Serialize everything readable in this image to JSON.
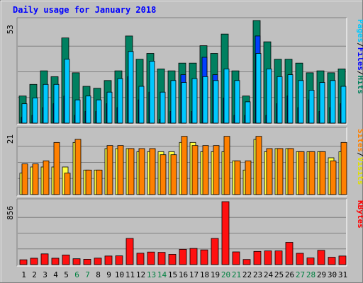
{
  "chart_data": {
    "type": "bar",
    "title": "Daily usage for January 2018",
    "title_color": "#0000ff",
    "days": [
      "1",
      "2",
      "3",
      "4",
      "5",
      "6",
      "7",
      "8",
      "9",
      "10",
      "11",
      "12",
      "13",
      "14",
      "15",
      "16",
      "17",
      "18",
      "19",
      "20",
      "21",
      "22",
      "23",
      "24",
      "25",
      "26",
      "27",
      "28",
      "29",
      "30",
      "31"
    ],
    "weekend_days": [
      "6",
      "7",
      "13",
      "14",
      "20",
      "21",
      "27",
      "28"
    ],
    "weekend_color": "#008040",
    "panels": [
      {
        "name": "hits-panel",
        "scale_label": "53",
        "max": 53,
        "legend": [
          {
            "text": "Hits",
            "color": "#00805c"
          },
          {
            "text": "Files",
            "color": "#0000ff"
          },
          {
            "text": "Pages",
            "color": "#00c8ff"
          }
        ],
        "series": [
          {
            "name": "Hits",
            "color": "#008060",
            "values": [
              14,
              20,
              27,
              24,
              44,
              26,
              19,
              18,
              22,
              27,
              45,
              33,
              36,
              28,
              27,
              31,
              31,
              40,
              36,
              46,
              27,
              14,
              53,
              42,
              33,
              33,
              31,
              26,
              27,
              26,
              28
            ]
          },
          {
            "name": "Files",
            "color": "#0040ff",
            "values": [
              3,
              4,
              8,
              10,
              14,
              4,
              6,
              6,
              10,
              8,
              24,
              12,
              16,
              2,
              6,
              25,
              6,
              34,
              25,
              13,
              4,
              4,
              45,
              4,
              10,
              14,
              8,
              12,
              6,
              8,
              10
            ]
          },
          {
            "name": "Pages",
            "color": "#00c8ff",
            "values": [
              10,
              13,
              20,
              20,
              33,
              12,
              14,
              12,
              16,
              23,
              37,
              19,
              32,
              16,
              22,
              21,
              23,
              24,
              22,
              28,
              22,
              11,
              36,
              28,
              24,
              25,
              22,
              17,
              21,
              22,
              19
            ]
          }
        ]
      },
      {
        "name": "visits-panel",
        "scale_label": "21",
        "max": 21,
        "legend": [
          {
            "text": "Visits",
            "color": "#e0e000"
          },
          {
            "text": "Sites",
            "color": "#ff8000"
          }
        ],
        "series": [
          {
            "name": "Visits",
            "color": "#ffff40",
            "values": [
              7,
              9,
              9,
              9,
              9,
              17,
              8,
              8,
              15,
              15,
              15,
              14,
              14,
              14,
              14,
              17,
              17,
              14,
              14,
              14,
              11,
              8,
              18,
              14,
              15,
              15,
              14,
              14,
              14,
              12,
              14
            ]
          },
          {
            "name": "Sites",
            "color": "#ff8000",
            "values": [
              10,
              10,
              11,
              17,
              7,
              18,
              8,
              8,
              16,
              16,
              15,
              15,
              15,
              13,
              13,
              19,
              16,
              16,
              16,
              19,
              11,
              11,
              19,
              15,
              15,
              15,
              14,
              14,
              14,
              11,
              17
            ]
          }
        ]
      },
      {
        "name": "kbytes-panel",
        "scale_label": "856",
        "max": 856,
        "legend": [
          {
            "text": "KBytes",
            "color": "#ff0000"
          }
        ],
        "series": [
          {
            "name": "KBytes",
            "color": "#ff1010",
            "values": [
              66,
              87,
              146,
              87,
              131,
              80,
              73,
              88,
              117,
              119,
              356,
              155,
              171,
              167,
              140,
              208,
              220,
              200,
              356,
              856,
              173,
              70,
              180,
              186,
              186,
              303,
              154,
              91,
              194,
              100,
              117
            ]
          }
        ]
      }
    ]
  }
}
